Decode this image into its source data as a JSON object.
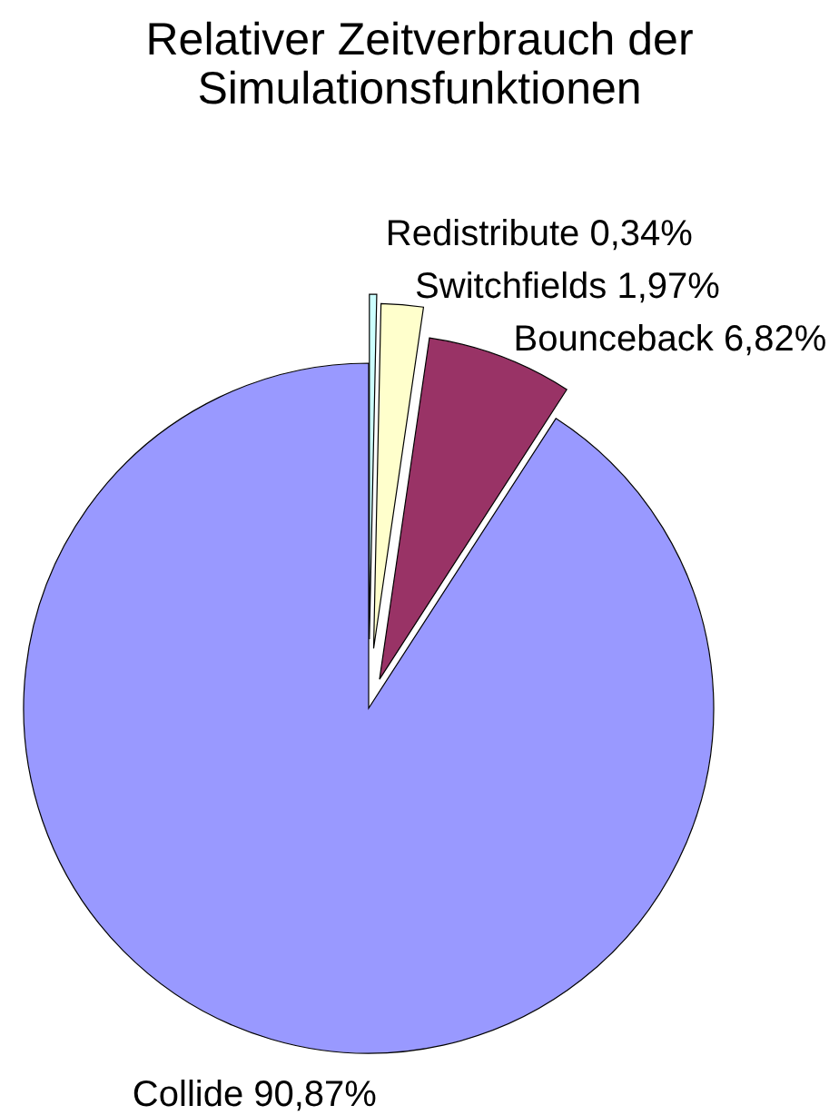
{
  "chart_data": {
    "type": "pie",
    "title": "Relativer Zeitverbrauch der\nSimulationsfunktionen",
    "categories": [
      "Redistribute",
      "Switchfields",
      "Bounceback",
      "Collide"
    ],
    "values": [
      0.34,
      1.97,
      6.82,
      90.87
    ],
    "value_labels": [
      "0,34%",
      "1,97%",
      "6,82%",
      "90,87%"
    ],
    "colors": [
      "#ccffff",
      "#ffffcc",
      "#993366",
      "#9999ff"
    ]
  }
}
